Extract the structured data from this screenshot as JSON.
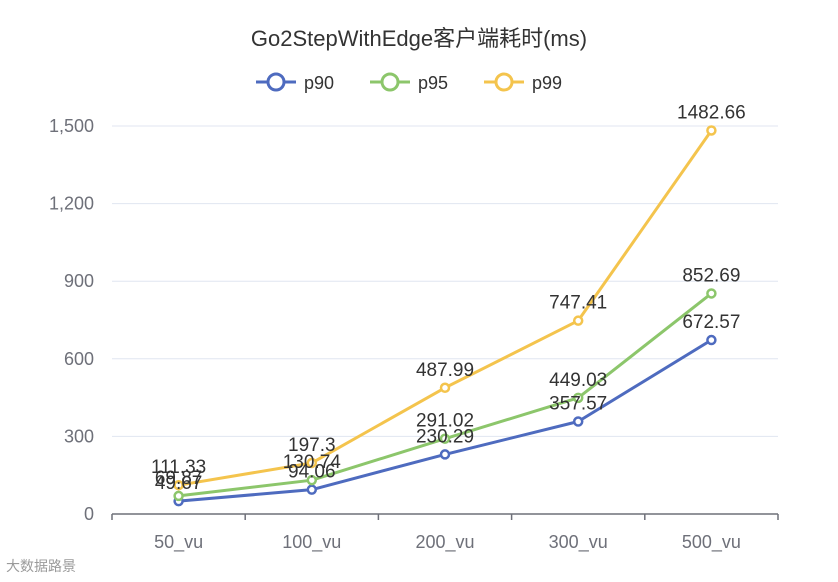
{
  "chart_data": {
    "type": "line",
    "title": "Go2StepWithEdge客户端耗时(ms)",
    "categories": [
      "50_vu",
      "100_vu",
      "200_vu",
      "300_vu",
      "500_vu"
    ],
    "series": [
      {
        "name": "p90",
        "color": "#4e6bbf",
        "values": [
          49.67,
          94.06,
          230.29,
          357.57,
          672.57
        ]
      },
      {
        "name": "p95",
        "color": "#8cc66b",
        "values": [
          69.87,
          130.74,
          291.02,
          449.03,
          852.69
        ]
      },
      {
        "name": "p99",
        "color": "#f4c44d",
        "values": [
          111.33,
          197.3,
          487.99,
          747.41,
          1482.66
        ]
      }
    ],
    "y_ticks": [
      0,
      300,
      600,
      900,
      1200,
      1500
    ],
    "y_tick_labels": [
      "0",
      "300",
      "600",
      "900",
      "1,200",
      "1,500"
    ],
    "ylim": [
      0,
      1500
    ],
    "xlabel": "",
    "ylabel": "",
    "legend_position": "top"
  },
  "watermark": "大数据路景"
}
